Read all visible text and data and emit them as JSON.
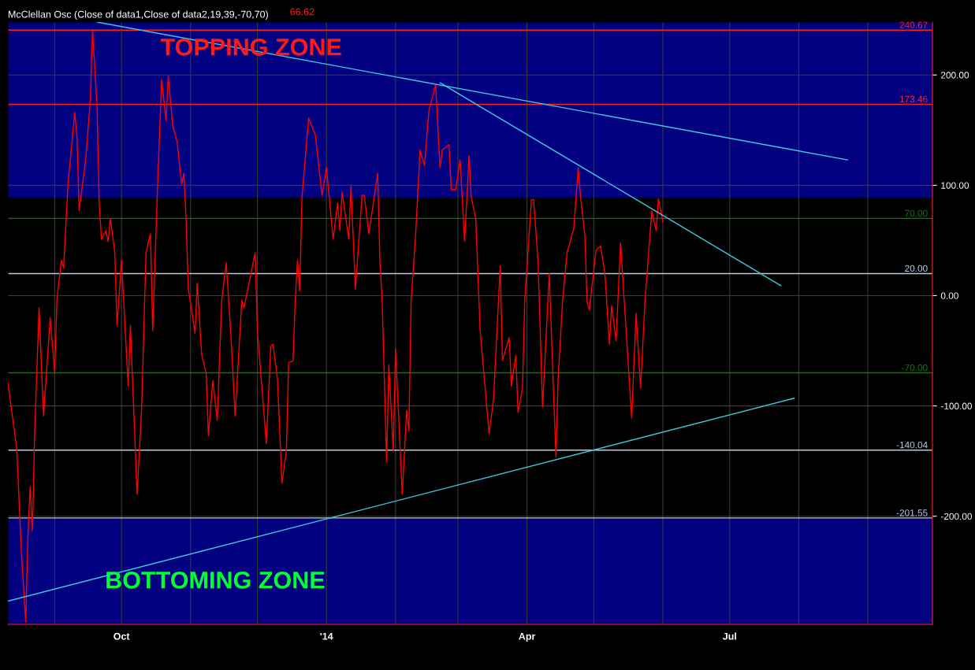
{
  "chart_data": {
    "type": "line",
    "title": "McClellan Osc (Close of data1,Close of data2,19,39,-70,70)",
    "x": [
      "2013-08-11",
      "2013-08-15",
      "2013-08-17",
      "2013-08-19",
      "2013-08-20",
      "2013-08-21",
      "2013-08-22",
      "2013-08-23",
      "2013-08-24",
      "2013-08-25",
      "2013-08-27",
      "2013-08-30",
      "2013-09-01",
      "2013-09-02",
      "2013-09-04",
      "2013-09-05",
      "2013-09-07",
      "2013-09-10",
      "2013-09-11",
      "2013-09-12",
      "2013-09-15",
      "2013-09-17",
      "2013-09-18",
      "2013-09-20",
      "2013-09-21",
      "2013-09-22",
      "2013-09-24",
      "2013-09-25",
      "2013-09-26",
      "2013-09-28",
      "2013-09-29",
      "2013-10-01",
      "2013-10-04",
      "2013-10-05",
      "2013-10-08",
      "2013-10-10",
      "2013-10-12",
      "2013-10-14",
      "2013-10-15",
      "2013-10-17",
      "2013-10-19",
      "2013-10-21",
      "2013-10-22",
      "2013-10-24",
      "2013-10-26",
      "2013-10-28",
      "2013-10-29",
      "2013-10-30",
      "2013-10-31",
      "2013-11-03",
      "2013-11-04",
      "2013-11-06",
      "2013-11-08",
      "2013-11-09",
      "2013-11-11",
      "2013-11-13",
      "2013-11-15",
      "2013-11-17",
      "2013-11-19",
      "2013-11-21",
      "2013-11-24",
      "2013-11-25",
      "2013-11-30",
      "2013-12-01",
      "2013-12-05",
      "2013-12-07",
      "2013-12-08",
      "2013-12-10",
      "2013-12-12",
      "2013-12-14",
      "2013-12-15",
      "2013-12-17",
      "2013-12-18",
      "2013-12-19",
      "2013-12-20",
      "2013-12-21",
      "2013-12-24",
      "2013-12-27",
      "2013-12-30",
      "2014-01-01",
      "2014-01-04",
      "2014-01-06",
      "2014-01-07",
      "2014-01-08",
      "2014-01-11",
      "2014-01-12",
      "2014-01-14",
      "2014-01-17",
      "2014-01-18",
      "2014-01-20",
      "2014-01-24",
      "2014-01-25",
      "2014-01-26",
      "2014-01-28",
      "2014-01-29",
      "2014-01-31",
      "2014-02-01",
      "2014-02-04",
      "2014-02-06",
      "2014-02-07",
      "2014-02-08",
      "2014-02-10",
      "2014-02-12",
      "2014-02-14",
      "2014-02-16",
      "2014-02-19",
      "2014-02-21",
      "2014-02-22",
      "2014-02-25",
      "2014-02-26",
      "2014-02-28",
      "2014-03-02",
      "2014-03-04",
      "2014-03-06",
      "2014-03-07",
      "2014-03-09",
      "2014-03-11",
      "2014-03-15",
      "2014-03-17",
      "2014-03-20",
      "2014-03-21",
      "2014-03-24",
      "2014-03-25",
      "2014-03-27",
      "2014-03-28",
      "2014-03-30",
      "2014-03-31",
      "2014-04-03",
      "2014-04-04",
      "2014-04-06",
      "2014-04-08",
      "2014-04-11",
      "2014-04-14",
      "2014-04-15",
      "2014-04-17",
      "2014-04-19",
      "2014-04-22",
      "2014-04-24",
      "2014-04-25",
      "2014-04-27",
      "2014-04-28",
      "2014-04-29",
      "2014-05-02",
      "2014-05-04",
      "2014-05-06",
      "2014-05-08",
      "2014-05-09",
      "2014-05-11",
      "2014-05-13",
      "2014-05-18",
      "2014-05-20",
      "2014-05-22",
      "2014-05-24",
      "2014-05-26",
      "2014-05-27",
      "2014-05-29",
      "2014-05-30",
      "2014-06-01"
    ],
    "series": [
      {
        "color": "#ff0000",
        "values": [
          -79,
          -139,
          -230,
          -296,
          -218,
          -173,
          -213,
          -127,
          -68,
          -11,
          -109,
          -20,
          -70,
          -4,
          32,
          25,
          101,
          166,
          144,
          77,
          125,
          177,
          241,
          173,
          84,
          51,
          59,
          49,
          70,
          39,
          -27,
          32,
          -82,
          -27,
          -180,
          -104,
          39,
          56,
          -32,
          89,
          196,
          159,
          199,
          154,
          139,
          101,
          111,
          68,
          6,
          -34,
          11,
          -54,
          -70,
          -127,
          -77,
          -113,
          -4,
          30,
          -32,
          -109,
          -4,
          -11,
          39,
          -32,
          -134,
          -46,
          -44,
          -75,
          -170,
          -141,
          -61,
          -59,
          -4,
          32,
          4,
          89,
          161,
          146,
          91,
          116,
          51,
          84,
          59,
          94,
          51,
          99,
          6,
          91,
          91,
          56,
          111,
          30,
          -4,
          -151,
          -63,
          -141,
          -48,
          -180,
          -104,
          -123,
          -4,
          54,
          132,
          118,
          168,
          191,
          116,
          132,
          137,
          96,
          96,
          123,
          49,
          127,
          89,
          70,
          -32,
          -125,
          -94,
          27,
          -59,
          -38,
          -82,
          -54,
          -106,
          -84,
          -4,
          87,
          87,
          30,
          -101,
          20,
          -146,
          -75,
          -4,
          39,
          61,
          116,
          91,
          54,
          -6,
          -13,
          41,
          45,
          20,
          -44,
          -9,
          -41,
          48,
          -111,
          -16,
          -84,
          -4,
          49,
          77,
          59,
          88,
          66.62
        ]
      },
      {
        "type": "line",
        "color": "#3fc8e0",
        "x": [
          "2013-09-20",
          "2014-08-23"
        ],
        "values": [
          248,
          123
        ]
      },
      {
        "type": "line",
        "color": "#3fc8e0",
        "x": [
          "2014-02-21",
          "2014-07-24"
        ],
        "values": [
          193,
          9
        ]
      },
      {
        "type": "line",
        "color": "#3fc8e0",
        "x": [
          "2013-08-11",
          "2014-07-30"
        ],
        "values": [
          -277,
          -93
        ]
      }
    ],
    "xlim": [
      "2013-08-11",
      "2014-09-30"
    ],
    "xticks": [
      {
        "value": "2013-09-01",
        "label": null
      },
      {
        "value": "2013-10-01",
        "label": "Oct"
      },
      {
        "value": "2013-11-01",
        "label": null
      },
      {
        "value": "2013-12-01",
        "label": null
      },
      {
        "value": "2014-01-01",
        "label": "'14"
      },
      {
        "value": "2014-02-01",
        "label": null
      },
      {
        "value": "2014-03-01",
        "label": null
      },
      {
        "value": "2014-04-01",
        "label": "Apr"
      },
      {
        "value": "2014-05-01",
        "label": null
      },
      {
        "value": "2014-06-01",
        "label": null
      },
      {
        "value": "2014-07-01",
        "label": "Jul"
      },
      {
        "value": "2014-08-01",
        "label": null
      },
      {
        "value": "2014-09-01",
        "label": null
      }
    ],
    "ylim": [
      -298,
      248
    ],
    "yticks": [
      {
        "value": -200,
        "label": "-200.00"
      },
      {
        "value": -100,
        "label": "-100.00"
      },
      {
        "value": 0,
        "label": "0.00"
      },
      {
        "value": 100,
        "label": "100.00"
      },
      {
        "value": 200,
        "label": "200.00"
      }
    ],
    "grid": true,
    "marker": "none",
    "line_style": "solid",
    "legend": false,
    "bands": [
      {
        "axis": "y",
        "from": 89,
        "to": 248,
        "label": "TOPPING ZONE",
        "color": "#000080"
      },
      {
        "axis": "y",
        "from": -298,
        "to": -202,
        "label": "BOTTOMING ZONE",
        "color": "#000080"
      }
    ],
    "ref_lines": [
      {
        "axis": "y",
        "value": 240.67,
        "label": "240.67",
        "color": "#ff2020"
      },
      {
        "axis": "y",
        "value": 173.46,
        "label": "173.46",
        "color": "#ff2020"
      },
      {
        "axis": "y",
        "value": 70,
        "label": "70.00",
        "color": "#008000"
      },
      {
        "axis": "y",
        "value": 20,
        "label": "20.00",
        "color": "#b8c8e8"
      },
      {
        "axis": "y",
        "value": -70,
        "label": "-70.00",
        "color": "#008000"
      },
      {
        "axis": "y",
        "value": -140.04,
        "label": "-140.04",
        "color": "#b8c8e8"
      },
      {
        "axis": "y",
        "value": -201.55,
        "label": "-201.55",
        "color": "#b8c8e8"
      }
    ],
    "annotations": [
      "66.62"
    ]
  }
}
